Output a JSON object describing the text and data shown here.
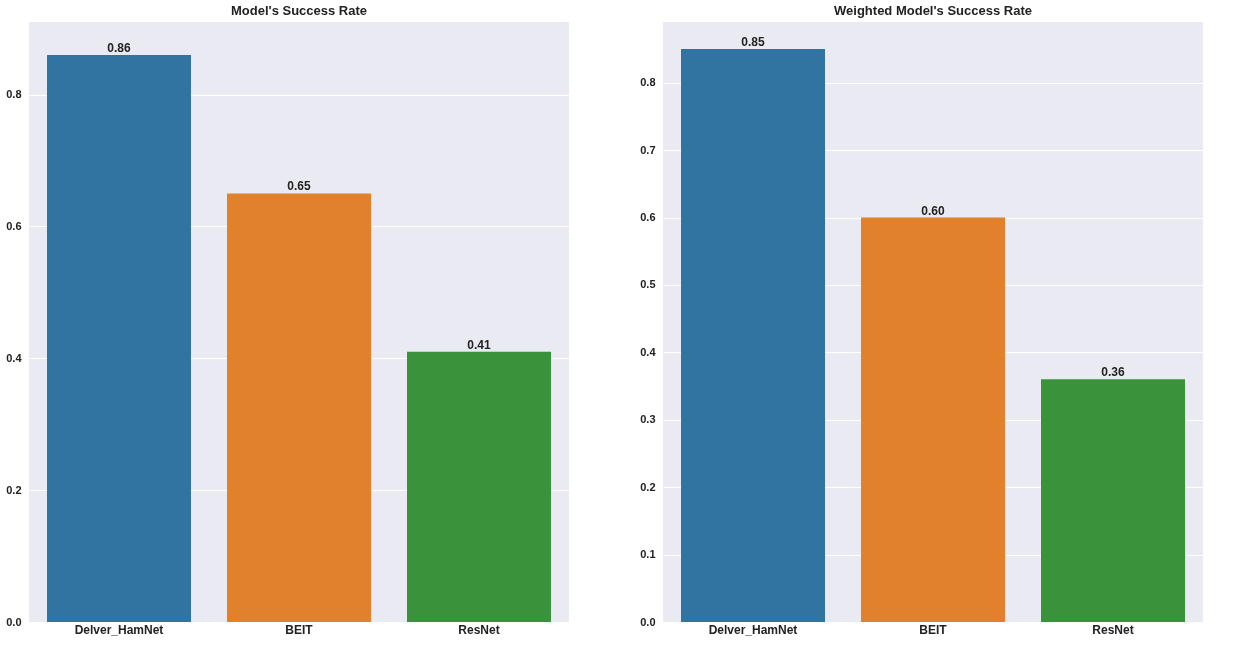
{
  "chart_data": [
    {
      "type": "bar",
      "title": "Model's Success Rate",
      "categories": [
        "Delver_HamNet",
        "BEIT",
        "ResNet"
      ],
      "values": [
        0.86,
        0.65,
        0.41
      ],
      "value_labels": [
        "0.86",
        "0.65",
        "0.41"
      ],
      "colors": [
        "#3274a1",
        "#e1812c",
        "#3a923a"
      ],
      "ylim": [
        0,
        0.91
      ],
      "yticks": [
        {
          "value": 0,
          "label": "0.0"
        },
        {
          "value": 0.2,
          "label": "0.2"
        },
        {
          "value": 0.4,
          "label": "0.4"
        },
        {
          "value": 0.6,
          "label": "0.6"
        },
        {
          "value": 0.8,
          "label": "0.8"
        }
      ],
      "grid": "y"
    },
    {
      "type": "bar",
      "title": "Weighted Model's Success Rate",
      "categories": [
        "Delver_HamNet",
        "BEIT",
        "ResNet"
      ],
      "values": [
        0.85,
        0.6,
        0.36
      ],
      "value_labels": [
        "0.85",
        "0.60",
        "0.36"
      ],
      "colors": [
        "#3274a1",
        "#e1812c",
        "#3a923a"
      ],
      "ylim": [
        0,
        0.89
      ],
      "yticks": [
        {
          "value": 0,
          "label": "0.0"
        },
        {
          "value": 0.1,
          "label": "0.1"
        },
        {
          "value": 0.2,
          "label": "0.2"
        },
        {
          "value": 0.3,
          "label": "0.3"
        },
        {
          "value": 0.4,
          "label": "0.4"
        },
        {
          "value": 0.5,
          "label": "0.5"
        },
        {
          "value": 0.6,
          "label": "0.6"
        },
        {
          "value": 0.7,
          "label": "0.7"
        },
        {
          "value": 0.8,
          "label": "0.8"
        }
      ],
      "grid": "y"
    }
  ]
}
